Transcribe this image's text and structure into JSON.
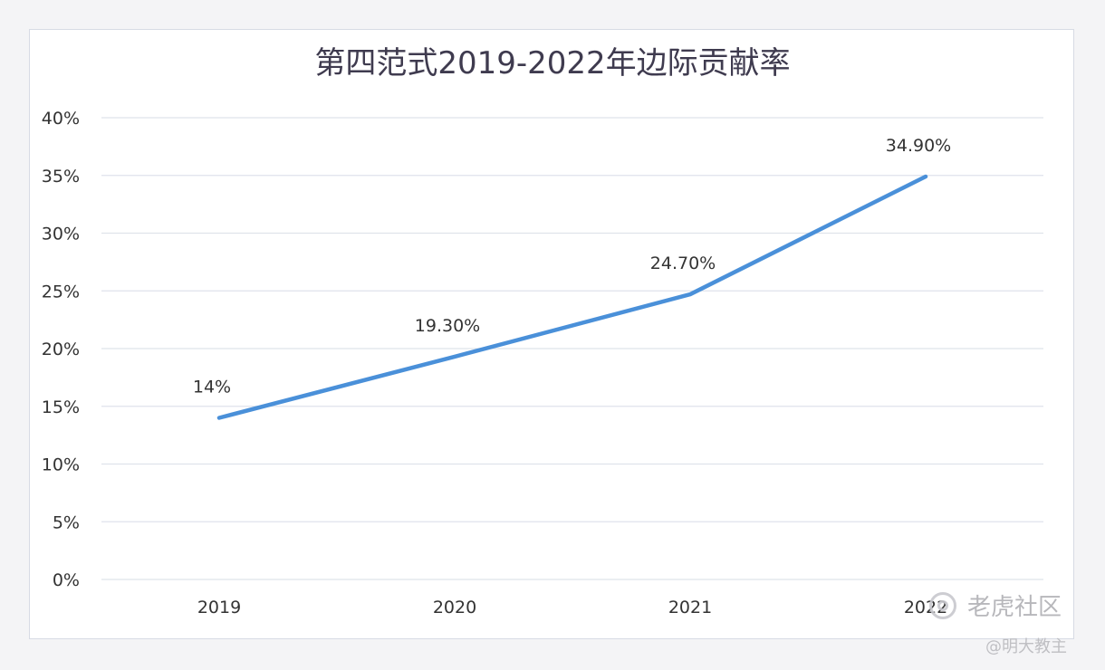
{
  "chart_data": {
    "type": "line",
    "title": "第四范式2019-2022年边际贡献率",
    "xlabel": "",
    "ylabel": "",
    "categories": [
      "2019",
      "2020",
      "2021",
      "2022"
    ],
    "values": [
      14,
      19.3,
      24.7,
      34.9
    ],
    "data_labels": [
      "14%",
      "19.30%",
      "24.70%",
      "34.90%"
    ],
    "ylim": [
      0,
      40
    ],
    "yticks": [
      "0%",
      "5%",
      "10%",
      "15%",
      "20%",
      "25%",
      "30%",
      "35%",
      "40%"
    ],
    "ytick_values": [
      0,
      5,
      10,
      15,
      20,
      25,
      30,
      35,
      40
    ],
    "grid": true,
    "legend": "none",
    "colors": {
      "line": "#4a90d9",
      "grid": "#dfe3eb"
    }
  },
  "watermark": {
    "brand": "老虎社区",
    "author": "@明大教主"
  }
}
